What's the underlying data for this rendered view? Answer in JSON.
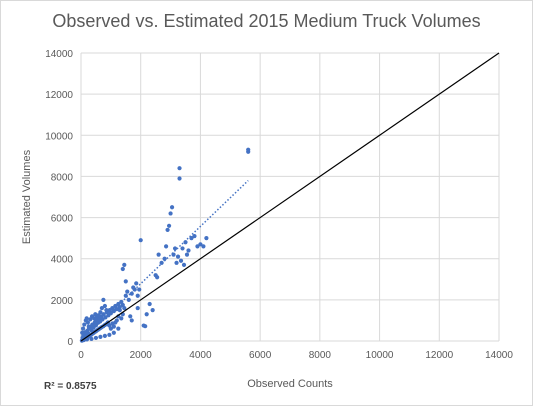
{
  "chart_data": {
    "type": "scatter",
    "title": "Observed vs. Estimated 2015 Medium Truck Volumes",
    "xlabel": "Observed Counts",
    "ylabel": "Estimated Volumes",
    "xlim": [
      0,
      14000
    ],
    "ylim": [
      0,
      14000
    ],
    "xticks": [
      0,
      2000,
      4000,
      6000,
      8000,
      10000,
      12000,
      14000
    ],
    "yticks": [
      0,
      2000,
      4000,
      6000,
      8000,
      10000,
      12000,
      14000
    ],
    "grid": "vertical and horizontal major gridlines",
    "r_squared_label": "R² = 0.8575",
    "reference_line": {
      "x": [
        0,
        14000
      ],
      "y": [
        0,
        14000
      ],
      "style": "solid black"
    },
    "trendline": {
      "x": [
        0,
        5600
      ],
      "y": [
        0,
        7800
      ],
      "style": "dotted blue"
    },
    "series": [
      {
        "color": "#4472c4",
        "points": [
          [
            30,
            20
          ],
          [
            60,
            40
          ],
          [
            90,
            70
          ],
          [
            120,
            100
          ],
          [
            150,
            120
          ],
          [
            180,
            160
          ],
          [
            200,
            150
          ],
          [
            220,
            200
          ],
          [
            250,
            220
          ],
          [
            280,
            260
          ],
          [
            300,
            280
          ],
          [
            330,
            300
          ],
          [
            360,
            320
          ],
          [
            400,
            380
          ],
          [
            430,
            400
          ],
          [
            460,
            440
          ],
          [
            500,
            470
          ],
          [
            540,
            520
          ],
          [
            580,
            560
          ],
          [
            620,
            600
          ],
          [
            660,
            640
          ],
          [
            700,
            680
          ],
          [
            750,
            720
          ],
          [
            800,
            780
          ],
          [
            850,
            820
          ],
          [
            900,
            880
          ],
          [
            50,
            150
          ],
          [
            80,
            250
          ],
          [
            100,
            350
          ],
          [
            140,
            420
          ],
          [
            170,
            300
          ],
          [
            210,
            500
          ],
          [
            240,
            380
          ],
          [
            270,
            620
          ],
          [
            320,
            700
          ],
          [
            350,
            520
          ],
          [
            380,
            800
          ],
          [
            420,
            650
          ],
          [
            460,
            900
          ],
          [
            500,
            760
          ],
          [
            520,
            1000
          ],
          [
            560,
            880
          ],
          [
            600,
            1100
          ],
          [
            640,
            950
          ],
          [
            680,
            1200
          ],
          [
            720,
            1050
          ],
          [
            760,
            1300
          ],
          [
            820,
            1150
          ],
          [
            870,
            1400
          ],
          [
            920,
            1250
          ],
          [
            960,
            1500
          ],
          [
            1000,
            1350
          ],
          [
            1050,
            1600
          ],
          [
            1100,
            1450
          ],
          [
            1150,
            1700
          ],
          [
            1200,
            1550
          ],
          [
            1250,
            1800
          ],
          [
            1300,
            1650
          ],
          [
            1350,
            1900
          ],
          [
            1400,
            1750
          ],
          [
            40,
            400
          ],
          [
            70,
            600
          ],
          [
            110,
            800
          ],
          [
            160,
            1000
          ],
          [
            190,
            1100
          ],
          [
            230,
            900
          ],
          [
            260,
            700
          ],
          [
            310,
            1050
          ],
          [
            370,
            1200
          ],
          [
            440,
            1100
          ],
          [
            480,
            1300
          ],
          [
            530,
            1150
          ],
          [
            590,
            1250
          ],
          [
            650,
            1400
          ],
          [
            700,
            1600
          ],
          [
            750,
            2000
          ],
          [
            800,
            1700
          ],
          [
            850,
            1500
          ],
          [
            900,
            900
          ],
          [
            950,
            750
          ],
          [
            1000,
            600
          ],
          [
            1050,
            850
          ],
          [
            1100,
            700
          ],
          [
            1150,
            900
          ],
          [
            1200,
            1000
          ],
          [
            1250,
            1200
          ],
          [
            1300,
            1500
          ],
          [
            1350,
            1100
          ],
          [
            1400,
            1300
          ],
          [
            1450,
            1600
          ],
          [
            1500,
            2200
          ],
          [
            1550,
            2400
          ],
          [
            1400,
            3500
          ],
          [
            1450,
            3700
          ],
          [
            1500,
            2900
          ],
          [
            1600,
            2000
          ],
          [
            1700,
            2300
          ],
          [
            1750,
            2600
          ],
          [
            1800,
            2500
          ],
          [
            1850,
            2800
          ],
          [
            1900,
            2200
          ],
          [
            1950,
            2500
          ],
          [
            2000,
            4900
          ],
          [
            2100,
            750
          ],
          [
            2150,
            720
          ],
          [
            2500,
            3200
          ],
          [
            2550,
            3100
          ],
          [
            2600,
            4200
          ],
          [
            2700,
            3800
          ],
          [
            2800,
            4000
          ],
          [
            2850,
            4600
          ],
          [
            2900,
            5400
          ],
          [
            2950,
            5600
          ],
          [
            3000,
            6200
          ],
          [
            3050,
            6500
          ],
          [
            3100,
            4200
          ],
          [
            3150,
            4500
          ],
          [
            3200,
            3800
          ],
          [
            3250,
            4100
          ],
          [
            3300,
            8400
          ],
          [
            3300,
            7900
          ],
          [
            3350,
            3900
          ],
          [
            3400,
            4500
          ],
          [
            3450,
            3700
          ],
          [
            3500,
            4800
          ],
          [
            3550,
            4200
          ],
          [
            3600,
            4400
          ],
          [
            3700,
            5000
          ],
          [
            3800,
            5100
          ],
          [
            3900,
            4600
          ],
          [
            4000,
            4700
          ],
          [
            4100,
            4600
          ],
          [
            4200,
            5000
          ],
          [
            5600,
            9300
          ],
          [
            5600,
            9200
          ],
          [
            2400,
            1500
          ],
          [
            2300,
            1800
          ],
          [
            1650,
            1200
          ],
          [
            1700,
            1000
          ],
          [
            1900,
            1600
          ],
          [
            2200,
            1300
          ],
          [
            1250,
            600
          ],
          [
            1100,
            400
          ],
          [
            950,
            300
          ],
          [
            800,
            250
          ],
          [
            650,
            200
          ],
          [
            500,
            150
          ],
          [
            350,
            100
          ],
          [
            200,
            80
          ],
          [
            100,
            50
          ]
        ]
      }
    ]
  }
}
